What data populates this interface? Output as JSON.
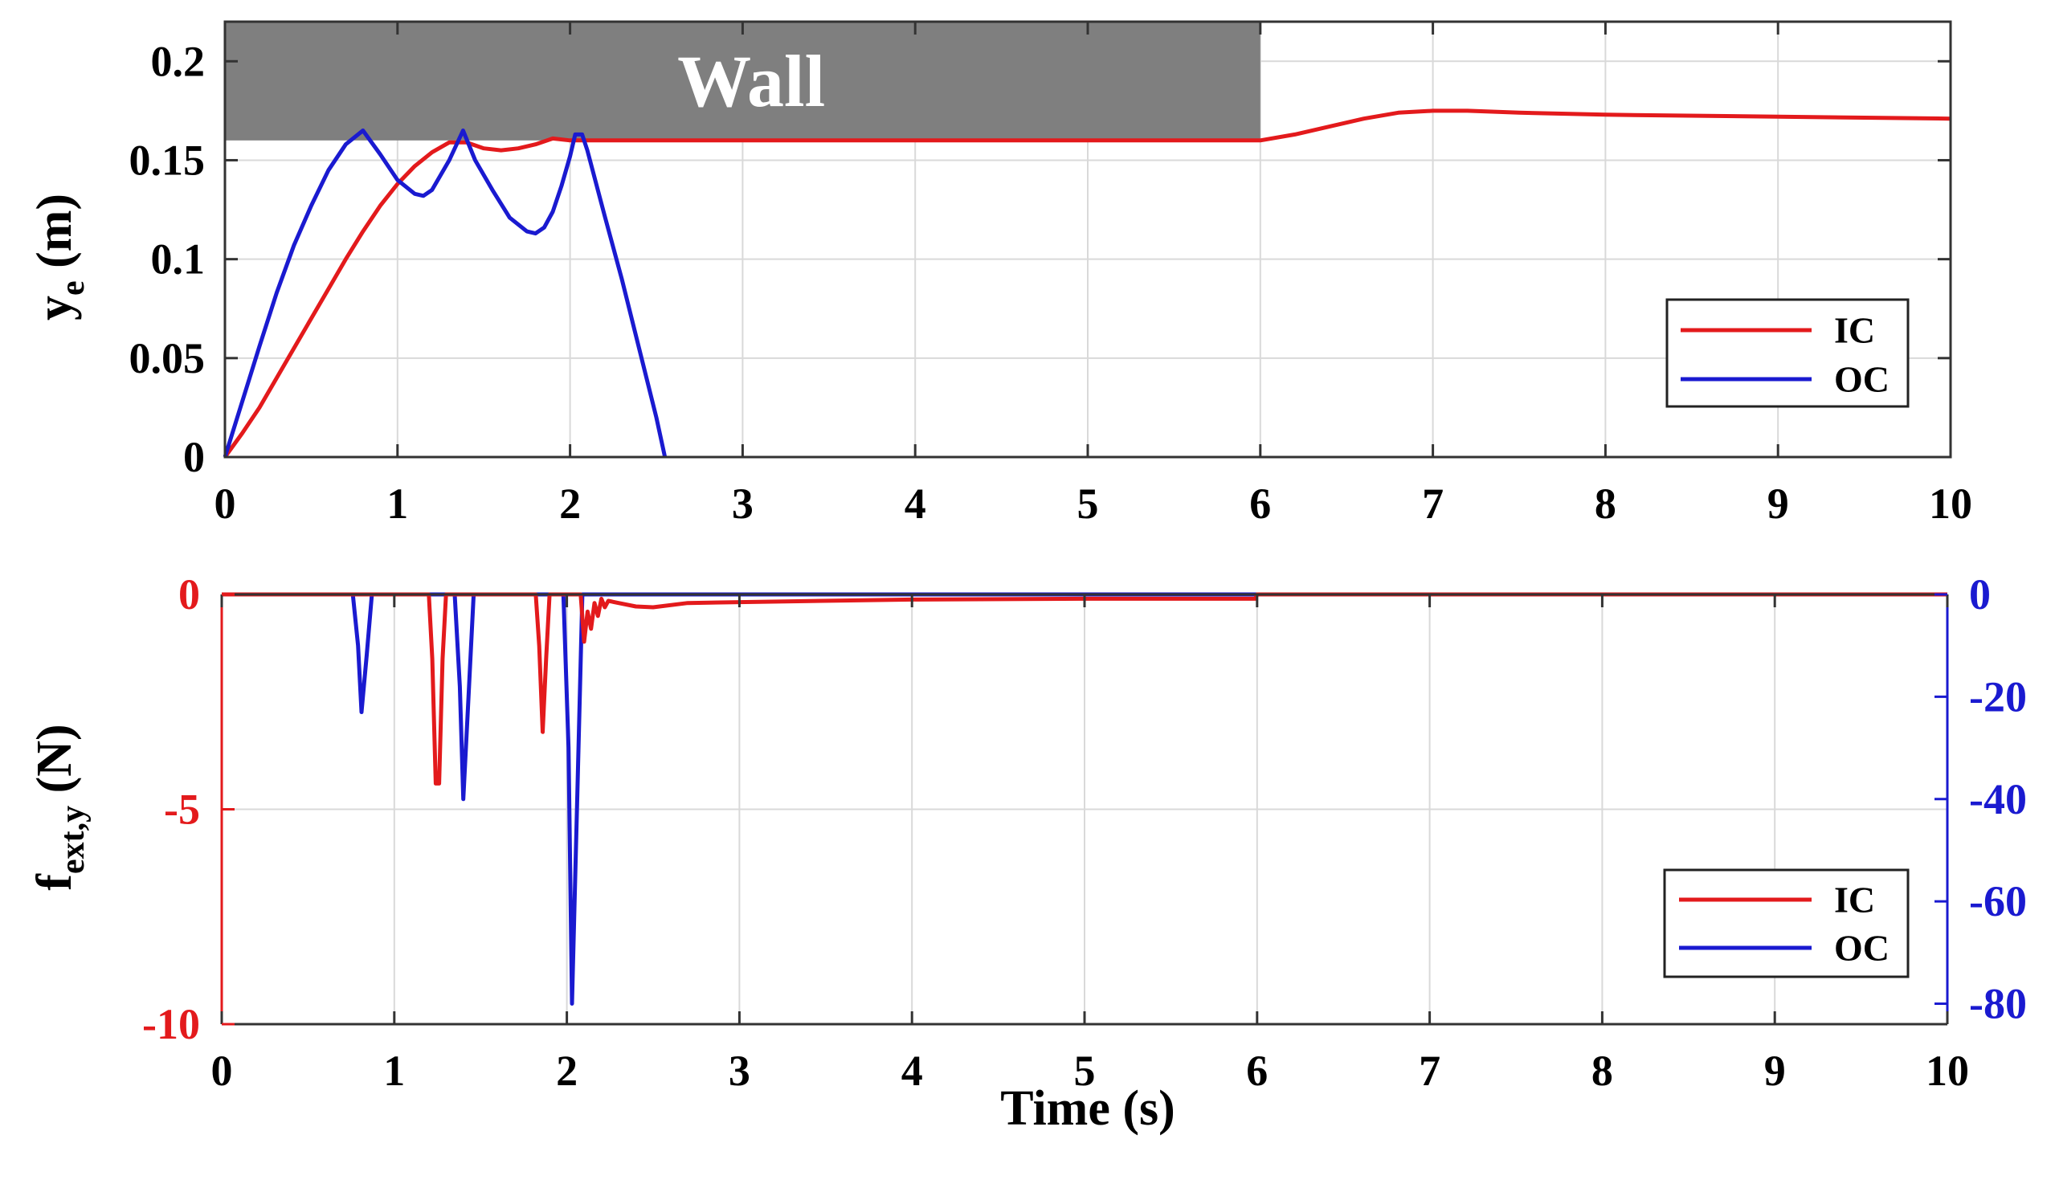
{
  "colors": {
    "ic": "#e31a1c",
    "oc": "#1a1ad0",
    "wall": "#7f7f7f",
    "grid": "#d9d9d9",
    "axis": "#333333",
    "background": "#ffffff"
  },
  "chart_data": [
    {
      "type": "line",
      "panel": "top",
      "title": "",
      "xlabel": "",
      "ylabel": "y",
      "ylabel_subscript": "e",
      "ylabel_unit": "(m)",
      "xlim": [
        0,
        10
      ],
      "ylim": [
        0,
        0.22
      ],
      "x_ticks": [
        0,
        1,
        2,
        3,
        4,
        5,
        6,
        7,
        8,
        9,
        10
      ],
      "x_tick_labels": [
        "0",
        "1",
        "2",
        "3",
        "4",
        "5",
        "6",
        "7",
        "8",
        "9",
        "10"
      ],
      "y_ticks": [
        0,
        0.05,
        0.1,
        0.15,
        0.2
      ],
      "y_tick_labels": [
        "0",
        "0.05",
        "0.1",
        "0.15",
        "0.2"
      ],
      "grid": true,
      "legend_position": "bottom-right",
      "annotation": {
        "text": "Wall",
        "x_range": [
          0,
          6
        ],
        "y_range": [
          0.16,
          0.22
        ]
      },
      "series": [
        {
          "name": "IC",
          "color": "#e31a1c",
          "x": [
            0,
            0.1,
            0.2,
            0.3,
            0.4,
            0.5,
            0.6,
            0.7,
            0.8,
            0.9,
            1.0,
            1.1,
            1.2,
            1.3,
            1.4,
            1.5,
            1.6,
            1.7,
            1.8,
            1.9,
            2.0,
            2.1,
            2.2,
            2.5,
            3,
            4,
            5,
            5.9,
            6.0,
            6.2,
            6.4,
            6.6,
            6.8,
            7.0,
            7.2,
            7.5,
            8,
            9,
            10
          ],
          "y": [
            0,
            0.012,
            0.025,
            0.04,
            0.055,
            0.07,
            0.085,
            0.1,
            0.114,
            0.127,
            0.138,
            0.147,
            0.154,
            0.159,
            0.159,
            0.156,
            0.155,
            0.156,
            0.158,
            0.161,
            0.16,
            0.16,
            0.16,
            0.16,
            0.16,
            0.16,
            0.16,
            0.16,
            0.16,
            0.163,
            0.167,
            0.171,
            0.174,
            0.175,
            0.175,
            0.174,
            0.173,
            0.172,
            0.171
          ]
        },
        {
          "name": "OC",
          "color": "#1a1ad0",
          "x": [
            0,
            0.1,
            0.2,
            0.3,
            0.4,
            0.5,
            0.6,
            0.7,
            0.8,
            0.9,
            1.0,
            1.1,
            1.15,
            1.2,
            1.3,
            1.38,
            1.45,
            1.55,
            1.65,
            1.75,
            1.8,
            1.85,
            1.9,
            1.95,
            2.0,
            2.03,
            2.07,
            2.1,
            2.2,
            2.3,
            2.4,
            2.5,
            2.55
          ],
          "y": [
            0,
            0.028,
            0.056,
            0.083,
            0.107,
            0.127,
            0.145,
            0.158,
            0.165,
            0.153,
            0.14,
            0.133,
            0.132,
            0.135,
            0.15,
            0.165,
            0.15,
            0.135,
            0.121,
            0.114,
            0.113,
            0.116,
            0.124,
            0.137,
            0.152,
            0.163,
            0.163,
            0.155,
            0.122,
            0.09,
            0.055,
            0.02,
            0
          ]
        }
      ]
    },
    {
      "type": "line",
      "panel": "bottom",
      "title": "",
      "xlabel": "Time (s)",
      "ylabel": "f",
      "ylabel_subscript": "ext,y",
      "ylabel_unit": "(N)",
      "xlim": [
        0,
        10
      ],
      "ylim_left": [
        -10,
        0
      ],
      "ylim_right": [
        -84,
        0
      ],
      "x_ticks": [
        0,
        1,
        2,
        3,
        4,
        5,
        6,
        7,
        8,
        9,
        10
      ],
      "x_tick_labels": [
        "0",
        "1",
        "2",
        "3",
        "4",
        "5",
        "6",
        "7",
        "8",
        "9",
        "10"
      ],
      "y_left_ticks": [
        -10,
        -5,
        0
      ],
      "y_left_tick_labels": [
        "-10",
        "-5",
        "0"
      ],
      "y_right_ticks": [
        -80,
        -60,
        -40,
        -20,
        0
      ],
      "y_right_tick_labels": [
        "-80",
        "-60",
        "-40",
        "-20",
        "0"
      ],
      "grid": true,
      "legend_position": "bottom-right",
      "series": [
        {
          "name": "IC",
          "axis": "left",
          "color": "#e31a1c",
          "x": [
            0,
            1.2,
            1.22,
            1.24,
            1.26,
            1.28,
            1.3,
            1.82,
            1.84,
            1.86,
            1.88,
            1.9,
            2.08,
            2.1,
            2.12,
            2.14,
            2.16,
            2.18,
            2.2,
            2.22,
            2.24,
            2.3,
            2.4,
            2.5,
            2.7,
            3.0,
            4.0,
            5.0,
            5.99,
            6.0,
            10
          ],
          "y": [
            0,
            0,
            -1.5,
            -4.4,
            -4.4,
            -1.5,
            0,
            0,
            -1.2,
            -3.2,
            -1.5,
            0,
            0,
            -1.1,
            -0.4,
            -0.8,
            -0.2,
            -0.5,
            -0.1,
            -0.3,
            -0.15,
            -0.2,
            -0.28,
            -0.3,
            -0.2,
            -0.18,
            -0.12,
            -0.1,
            -0.1,
            0,
            0
          ]
        },
        {
          "name": "OC",
          "axis": "right",
          "color": "#1a1ad0",
          "x": [
            0,
            0.76,
            0.79,
            0.81,
            0.84,
            0.87,
            1.35,
            1.38,
            1.4,
            1.43,
            1.46,
            1.98,
            2.01,
            2.03,
            2.06,
            2.09,
            2.12,
            10
          ],
          "y": [
            0,
            0,
            -10,
            -23,
            -12,
            0,
            0,
            -18,
            -40,
            -20,
            0,
            0,
            -30,
            -80,
            -40,
            0,
            0,
            0
          ]
        }
      ]
    }
  ]
}
